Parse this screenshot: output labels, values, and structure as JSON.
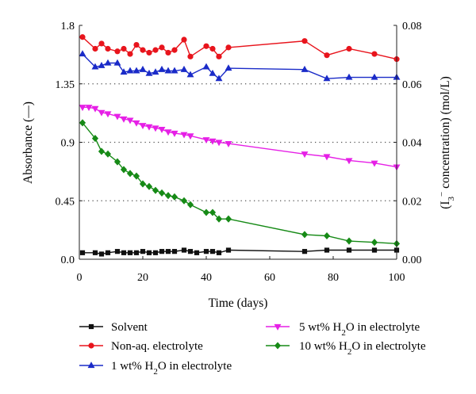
{
  "chart_data": {
    "type": "line",
    "xlabel": "Time (days)",
    "ylabel": "Absorbance (—)",
    "y2label_parts": [
      "(I",
      "3",
      "−",
      " concentration) (mol/L)"
    ],
    "xlim": [
      0,
      100
    ],
    "ylim": [
      0,
      1.8
    ],
    "y2lim": [
      0,
      0.08
    ],
    "xticks": [
      "0",
      "20",
      "40",
      "60",
      "80",
      "100"
    ],
    "yticks": [
      "0.0",
      "0.45",
      "0.9",
      "1.35",
      "1.8"
    ],
    "y2ticks": [
      "0.00",
      "0.02",
      "0.04",
      "0.06",
      "0.08"
    ],
    "grid": "dotted horizontal at 0.45, 0.9, 1.35",
    "legend_placement": "bottom",
    "series": [
      {
        "name": "Solvent",
        "color": "#111111",
        "marker": "square",
        "x": [
          1,
          5,
          7,
          9,
          12,
          14,
          16,
          18,
          20,
          22,
          24,
          26,
          28,
          30,
          33,
          35,
          37,
          40,
          42,
          44,
          47,
          71,
          78,
          85,
          93,
          100
        ],
        "y": [
          0.05,
          0.05,
          0.04,
          0.05,
          0.06,
          0.05,
          0.05,
          0.05,
          0.06,
          0.05,
          0.05,
          0.06,
          0.06,
          0.06,
          0.07,
          0.06,
          0.05,
          0.06,
          0.06,
          0.05,
          0.07,
          0.06,
          0.07,
          0.07,
          0.07,
          0.07
        ]
      },
      {
        "name": "Non-aq. electrolyte",
        "color": "#e8141c",
        "marker": "circle",
        "x": [
          1,
          5,
          7,
          9,
          12,
          14,
          16,
          18,
          20,
          22,
          24,
          26,
          28,
          30,
          33,
          35,
          40,
          42,
          44,
          47,
          71,
          78,
          85,
          93,
          100
        ],
        "y": [
          1.71,
          1.62,
          1.66,
          1.62,
          1.6,
          1.62,
          1.58,
          1.65,
          1.61,
          1.59,
          1.61,
          1.63,
          1.59,
          1.61,
          1.69,
          1.56,
          1.64,
          1.62,
          1.56,
          1.63,
          1.68,
          1.57,
          1.62,
          1.58,
          1.54
        ]
      },
      {
        "name": "1 wt% H₂O in electrolyte",
        "label_parts": [
          "1 wt% H",
          "2",
          "O in electrolyte"
        ],
        "color": "#1a2bc8",
        "marker": "triangle-up",
        "x": [
          1,
          5,
          7,
          9,
          12,
          14,
          16,
          18,
          20,
          22,
          24,
          26,
          28,
          30,
          33,
          35,
          40,
          42,
          44,
          47,
          71,
          78,
          85,
          93,
          100
        ],
        "y": [
          1.58,
          1.48,
          1.49,
          1.51,
          1.51,
          1.44,
          1.45,
          1.45,
          1.46,
          1.43,
          1.44,
          1.46,
          1.45,
          1.45,
          1.46,
          1.42,
          1.48,
          1.43,
          1.39,
          1.47,
          1.46,
          1.39,
          1.4,
          1.4,
          1.4
        ]
      },
      {
        "name": "5 wt% H₂O in electrolyte",
        "label_parts": [
          "5 wt% H",
          "2",
          "O in electrolyte"
        ],
        "color": "#e620e6",
        "marker": "triangle-down",
        "x": [
          1,
          3,
          5,
          7,
          9,
          12,
          14,
          16,
          18,
          20,
          22,
          24,
          26,
          28,
          30,
          33,
          35,
          40,
          42,
          44,
          47,
          71,
          78,
          85,
          93,
          100
        ],
        "y": [
          1.17,
          1.17,
          1.16,
          1.13,
          1.12,
          1.1,
          1.08,
          1.07,
          1.05,
          1.03,
          1.02,
          1.01,
          1.0,
          0.98,
          0.97,
          0.96,
          0.95,
          0.92,
          0.91,
          0.9,
          0.89,
          0.81,
          0.79,
          0.76,
          0.74,
          0.71
        ]
      },
      {
        "name": "10 wt% H₂O in electrolyte",
        "label_parts": [
          "10 wt% H",
          "2",
          "O in electrolyte"
        ],
        "color": "#168a16",
        "marker": "diamond",
        "x": [
          1,
          5,
          7,
          9,
          12,
          14,
          16,
          18,
          20,
          22,
          24,
          26,
          28,
          30,
          33,
          35,
          40,
          42,
          44,
          47,
          71,
          78,
          85,
          93,
          100
        ],
        "y": [
          1.05,
          0.93,
          0.83,
          0.81,
          0.75,
          0.69,
          0.66,
          0.64,
          0.58,
          0.56,
          0.53,
          0.51,
          0.49,
          0.48,
          0.45,
          0.42,
          0.36,
          0.36,
          0.31,
          0.31,
          0.19,
          0.18,
          0.14,
          0.13,
          0.12
        ]
      }
    ]
  }
}
